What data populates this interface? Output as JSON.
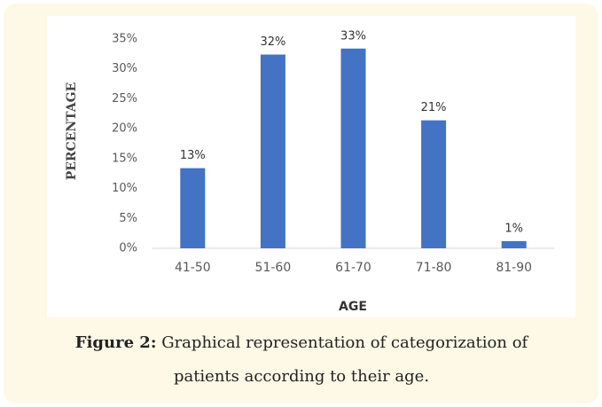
{
  "chart_data": {
    "type": "bar",
    "categories": [
      "41-50",
      "51-60",
      "61-70",
      "71-80",
      "81-90"
    ],
    "values": [
      13.4,
      32.4,
      33.4,
      21.4,
      1.2
    ],
    "value_labels": [
      "13%",
      "32%",
      "33%",
      "21%",
      "1%"
    ],
    "color": "#4472c4",
    "xlabel": "AGE",
    "ylabel": "PERCENTAGE",
    "ylim": [
      0,
      35
    ],
    "yticks": [
      {
        "value": 0,
        "label": "0%"
      },
      {
        "value": 5,
        "label": "5%"
      },
      {
        "value": 10,
        "label": "10%"
      },
      {
        "value": 15,
        "label": "15%"
      },
      {
        "value": 20,
        "label": "20%"
      },
      {
        "value": 25,
        "label": "25%"
      },
      {
        "value": 30,
        "label": "30%"
      },
      {
        "value": 35,
        "label": "35%"
      }
    ],
    "grid": false
  },
  "caption": {
    "label": "Figure 2:",
    "text": "Graphical representation of categorization of patients according to their age."
  }
}
